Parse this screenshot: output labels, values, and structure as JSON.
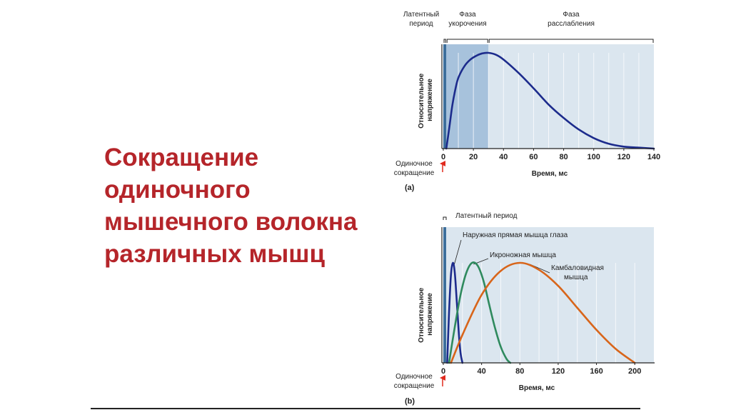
{
  "slide": {
    "title_lines": [
      "Сокращение",
      "одиночного",
      "мышечного волокна",
      "различных мышц"
    ]
  },
  "colors": {
    "title": "#b5252a",
    "panel_background": "#dbe6ef",
    "phase_latent": "#3d6f9c",
    "phase_shortening": "#a7c2dc",
    "phase_relaxation": "#dbe6ef",
    "curve_a": "#1c2b8c",
    "stimulus_arrow": "#e02a1e"
  },
  "chart_data": [
    {
      "type": "line",
      "panel_label": "(a)",
      "xlabel": "Время, мс",
      "ylabel_lines": [
        "Относительное",
        "напряжение"
      ],
      "xlim": [
        0,
        140
      ],
      "xticks": [
        0,
        20,
        40,
        60,
        80,
        100,
        120,
        140
      ],
      "stimulus_label_lines": [
        "Одиночное",
        "сокращение"
      ],
      "phases": [
        {
          "name_lines": [
            "Латентный",
            "период"
          ],
          "start": 0,
          "end": 2
        },
        {
          "name_lines": [
            "Фаза",
            "укорочения"
          ],
          "start": 2,
          "end": 30
        },
        {
          "name_lines": [
            "Фаза",
            "расслабления"
          ],
          "start": 30,
          "end": 140
        }
      ],
      "series": [
        {
          "color": "#1c2b8c",
          "x": [
            2,
            4,
            6,
            8,
            10,
            14,
            18,
            22,
            26,
            30,
            35,
            40,
            50,
            60,
            70,
            80,
            90,
            100,
            110,
            120,
            130,
            140
          ],
          "y": [
            0,
            0.22,
            0.45,
            0.62,
            0.74,
            0.86,
            0.93,
            0.97,
            0.995,
            1.0,
            0.98,
            0.93,
            0.79,
            0.63,
            0.46,
            0.32,
            0.2,
            0.11,
            0.05,
            0.02,
            0.01,
            0
          ]
        }
      ]
    },
    {
      "type": "line",
      "panel_label": "(b)",
      "xlabel": "Время, мс",
      "ylabel_lines": [
        "Относительное",
        "напряжение"
      ],
      "xlim": [
        0,
        220
      ],
      "xticks": [
        0,
        40,
        80,
        120,
        160,
        200
      ],
      "stimulus_label_lines": [
        "Одиночное",
        "сокращение"
      ],
      "latent_label": "Латентный период",
      "series": [
        {
          "name": "Наружная прямая мышца глаза",
          "color": "#1c2b8c",
          "x": [
            4,
            6,
            8,
            10,
            12,
            14,
            16,
            18,
            20
          ],
          "y": [
            0,
            0.5,
            0.88,
            1.0,
            0.9,
            0.62,
            0.32,
            0.1,
            0
          ]
        },
        {
          "name": "Икроножная мышца",
          "color": "#2f8a5e",
          "x": [
            6,
            12,
            18,
            24,
            30,
            36,
            42,
            48,
            54,
            60,
            66,
            70
          ],
          "y": [
            0,
            0.36,
            0.68,
            0.9,
            1.0,
            0.97,
            0.82,
            0.58,
            0.35,
            0.16,
            0.04,
            0
          ]
        },
        {
          "name": "Камбаловидная мышца",
          "name_lines": [
            "Камбаловидная",
            "мышца"
          ],
          "color": "#d8651a",
          "x": [
            8,
            20,
            40,
            60,
            80,
            100,
            120,
            140,
            160,
            180,
            200
          ],
          "y": [
            0,
            0.28,
            0.68,
            0.92,
            1.0,
            0.93,
            0.77,
            0.55,
            0.33,
            0.14,
            0
          ]
        }
      ]
    }
  ]
}
